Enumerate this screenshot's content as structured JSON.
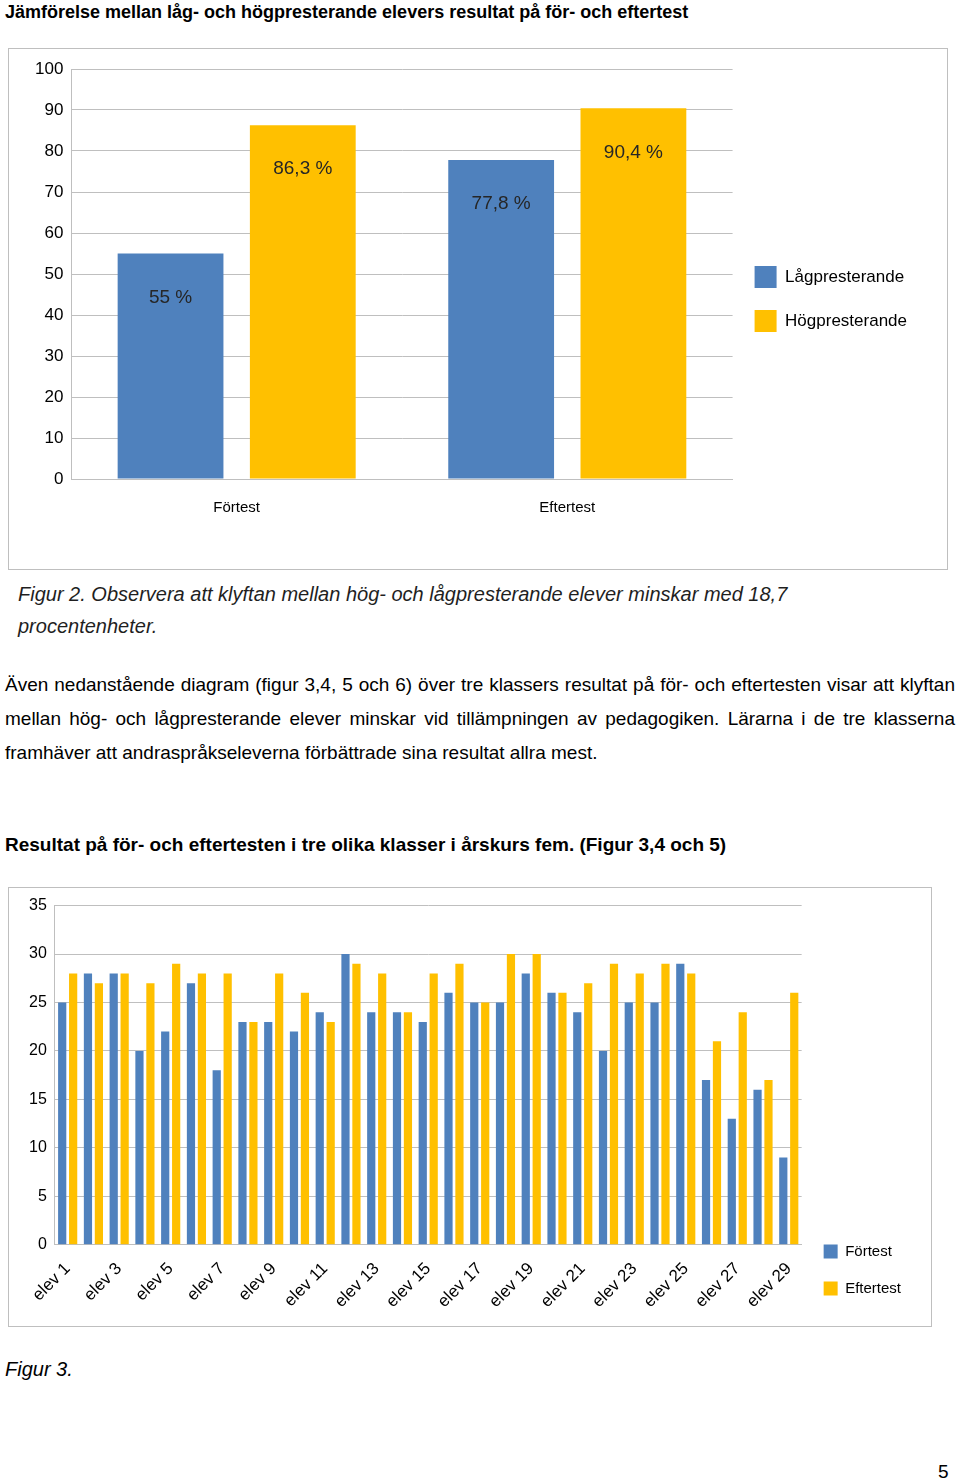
{
  "chart_data": [
    {
      "type": "bar",
      "title": "Jämförelse mellan låg- och högpresterande elevers resultat på för- och eftertest",
      "categories": [
        "Förtest",
        "Eftertest"
      ],
      "series": [
        {
          "name": "Lågpresterande",
          "color": "#4f81bd",
          "values": [
            55,
            77.8
          ],
          "value_labels": [
            "55 %",
            "77,8 %"
          ]
        },
        {
          "name": "Högpresterande",
          "color": "#ffc000",
          "values": [
            86.3,
            90.4
          ],
          "value_labels": [
            "86,3 %",
            "90,4 %"
          ]
        }
      ],
      "ylim": [
        0,
        100
      ],
      "yticks": [
        0,
        10,
        20,
        30,
        40,
        50,
        60,
        70,
        80,
        90,
        100
      ],
      "grid": true,
      "legend": "right",
      "data_labels": true
    },
    {
      "type": "bar",
      "title": "Resultat på för- och eftertesten i tre olika klasser i årskurs fem. (Figur 3,4 och 5)",
      "categories": [
        "elev 1",
        null,
        "elev 3",
        null,
        "elev 5",
        null,
        "elev 7",
        null,
        "elev 9",
        null,
        "elev 11",
        null,
        "elev 13",
        null,
        "elev 15",
        null,
        "elev 17",
        null,
        "elev 19",
        null,
        "elev 21",
        null,
        "elev 23",
        null,
        "elev 25",
        null,
        "elev 27",
        null,
        "elev 29"
      ],
      "series": [
        {
          "name": "Förtest",
          "color": "#4f81bd",
          "values": [
            25,
            28,
            28,
            20,
            22,
            27,
            18,
            23,
            23,
            22,
            24,
            30,
            24,
            24,
            23,
            26,
            25,
            25,
            28,
            26,
            24,
            20,
            25,
            25,
            29,
            17,
            13,
            16,
            9
          ]
        },
        {
          "name": "Eftertest",
          "color": "#ffc000",
          "values": [
            28,
            27,
            28,
            27,
            29,
            28,
            28,
            23,
            28,
            26,
            23,
            29,
            28,
            24,
            28,
            29,
            25,
            30,
            30,
            26,
            27,
            29,
            28,
            29,
            28,
            21,
            24,
            17,
            26
          ]
        }
      ],
      "ylim": [
        0,
        35
      ],
      "yticks": [
        0,
        5,
        10,
        15,
        20,
        25,
        30,
        35
      ],
      "grid": true,
      "legend": "right",
      "data_labels": false
    }
  ],
  "document": {
    "caption_1": "Figur 2. Observera att klyftan mellan hög- och lågpresterande elever minskar med 18,7 procentenheter.",
    "paragraph": "Även nedanstående diagram (figur 3,4, 5 och 6) över tre klassers resultat på för- och eftertesten visar att klyftan mellan hög- och lågpresterande elever minskar vid tillämpningen av pedagogiken. Lärarna i de tre klasserna framhäver att andraspråkseleverna förbättrade sina resultat allra mest.",
    "caption_2": "Figur 3.",
    "page_number": "5"
  }
}
